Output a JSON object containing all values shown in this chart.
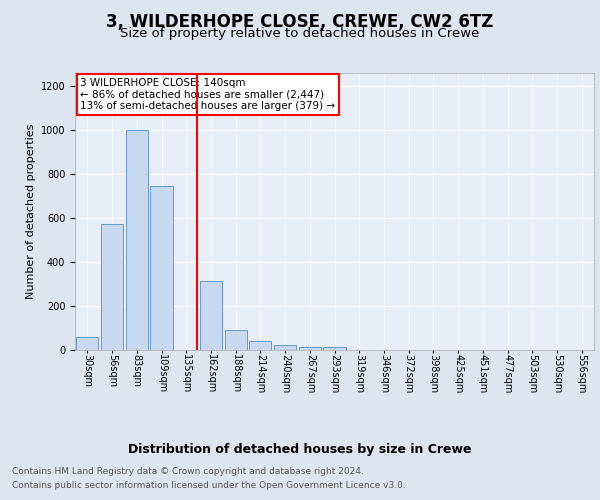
{
  "title": "3, WILDERHOPE CLOSE, CREWE, CW2 6TZ",
  "subtitle": "Size of property relative to detached houses in Crewe",
  "xlabel": "Distribution of detached houses by size in Crewe",
  "ylabel": "Number of detached properties",
  "footer_line1": "Contains HM Land Registry data © Crown copyright and database right 2024.",
  "footer_line2": "Contains public sector information licensed under the Open Government Licence v3.0.",
  "bin_labels": [
    "30sqm",
    "56sqm",
    "83sqm",
    "109sqm",
    "135sqm",
    "162sqm",
    "188sqm",
    "214sqm",
    "240sqm",
    "267sqm",
    "293sqm",
    "319sqm",
    "346sqm",
    "372sqm",
    "398sqm",
    "425sqm",
    "451sqm",
    "477sqm",
    "503sqm",
    "530sqm",
    "556sqm"
  ],
  "bar_values": [
    60,
    570,
    1000,
    745,
    0,
    315,
    90,
    40,
    22,
    13,
    12,
    0,
    0,
    0,
    0,
    0,
    0,
    0,
    0,
    0,
    0
  ],
  "bar_color": "#c8d9ef",
  "bar_edge_color": "#6699cc",
  "red_line_x": 4.42,
  "annotation_text": "3 WILDERHOPE CLOSE: 140sqm\n← 86% of detached houses are smaller (2,447)\n13% of semi-detached houses are larger (379) →",
  "ylim": [
    0,
    1260
  ],
  "yticks": [
    0,
    200,
    400,
    600,
    800,
    1000,
    1200
  ],
  "background_color": "#dde5f0",
  "plot_background": "#e8eef8",
  "grid_color": "#ffffff",
  "title_fontsize": 12,
  "subtitle_fontsize": 9.5,
  "ylabel_fontsize": 8,
  "xlabel_fontsize": 9,
  "tick_fontsize": 7,
  "footer_fontsize": 6.5
}
